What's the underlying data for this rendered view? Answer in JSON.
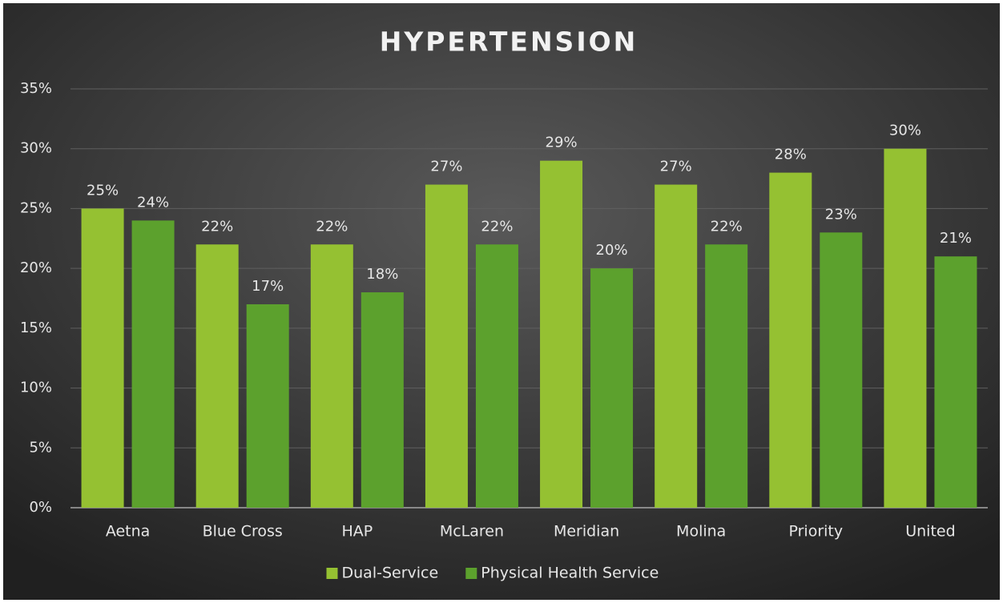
{
  "chart_data": {
    "type": "bar",
    "title": "HYPERTENSION",
    "categories": [
      "Aetna",
      "Blue Cross",
      "HAP",
      "McLaren",
      "Meridian",
      "Molina",
      "Priority",
      "United"
    ],
    "series": [
      {
        "name": "Dual-Service",
        "color": "#95c132",
        "values": [
          25,
          22,
          22,
          27,
          29,
          27,
          28,
          30
        ],
        "value_labels": [
          "25%",
          "22%",
          "22%",
          "27%",
          "29%",
          "27%",
          "28%",
          "30%"
        ]
      },
      {
        "name": "Physical Health Service",
        "color": "#5ca12d",
        "values": [
          24,
          17,
          18,
          22,
          20,
          22,
          23,
          21
        ],
        "value_labels": [
          "24%",
          "17%",
          "18%",
          "22%",
          "20%",
          "22%",
          "23%",
          "21%"
        ]
      }
    ],
    "ylim": [
      0,
      35
    ],
    "yticks": [
      {
        "value": 0,
        "label": "0%"
      },
      {
        "value": 5,
        "label": "5%"
      },
      {
        "value": 10,
        "label": "10%"
      },
      {
        "value": 15,
        "label": "15%"
      },
      {
        "value": 20,
        "label": "20%"
      },
      {
        "value": 25,
        "label": "25%"
      },
      {
        "value": 30,
        "label": "30%"
      },
      {
        "value": 35,
        "label": "35%"
      }
    ],
    "grid": true,
    "legend": "bottom"
  }
}
